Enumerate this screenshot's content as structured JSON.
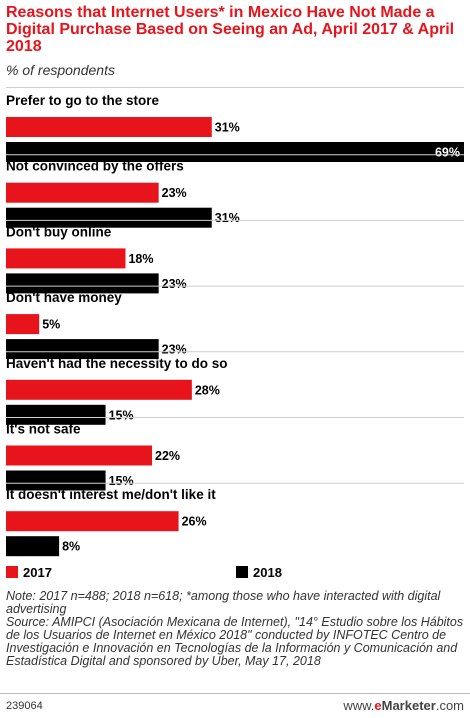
{
  "title": "Reasons that Internet Users* in Mexico Have Not Made a Digital Purchase Based on Seeing an Ad, April 2017 & April 2018",
  "subtitle": "% of respondents",
  "colors": {
    "2017": "#e8141c",
    "2018": "#000000",
    "title": "#e8141c"
  },
  "legend": [
    {
      "label": "2017",
      "color": "#e8141c"
    },
    {
      "label": "2018",
      "color": "#000000"
    }
  ],
  "chart_data": {
    "type": "bar",
    "orientation": "horizontal",
    "categories": [
      "Prefer to go to the store",
      "Not convinced by the offers",
      "Don't buy online",
      "Don't have money",
      "Haven't had the necessity to do so",
      "It's not safe",
      "It doesn't interest me/don't like it"
    ],
    "series": [
      {
        "name": "2017",
        "values": [
          31,
          23,
          18,
          5,
          28,
          22,
          26
        ],
        "labels": [
          "31%",
          "23%",
          "18%",
          "5%",
          "28%",
          "22%",
          "26%"
        ]
      },
      {
        "name": "2018",
        "values": [
          69,
          31,
          23,
          23,
          15,
          15,
          8
        ],
        "labels": [
          "69%",
          "31%",
          "23%",
          "23%",
          "15%",
          "15%",
          "8%"
        ]
      }
    ],
    "xlim": [
      0,
      69
    ],
    "grid": false,
    "legend_position": "bottom"
  },
  "note": "Note: 2017 n=488; 2018 n=618; *among those who have interacted with digital advertising",
  "source": "Source: AMIPCI (Asociación Mexicana de Internet), \"14° Estudio sobre los Hábitos de los Usuarios de Internet en México 2018\" conducted by INFOTEC Centro de Investigación e Innovación en Tecnologías de la Información y Comunicación and Estadística Digital and sponsored by Uber, May 17, 2018",
  "footer": {
    "id": "239064",
    "brand_e": "e",
    "brand_name": "Marketer",
    "brand_domain": ".com",
    "brand_prefix": "www."
  }
}
